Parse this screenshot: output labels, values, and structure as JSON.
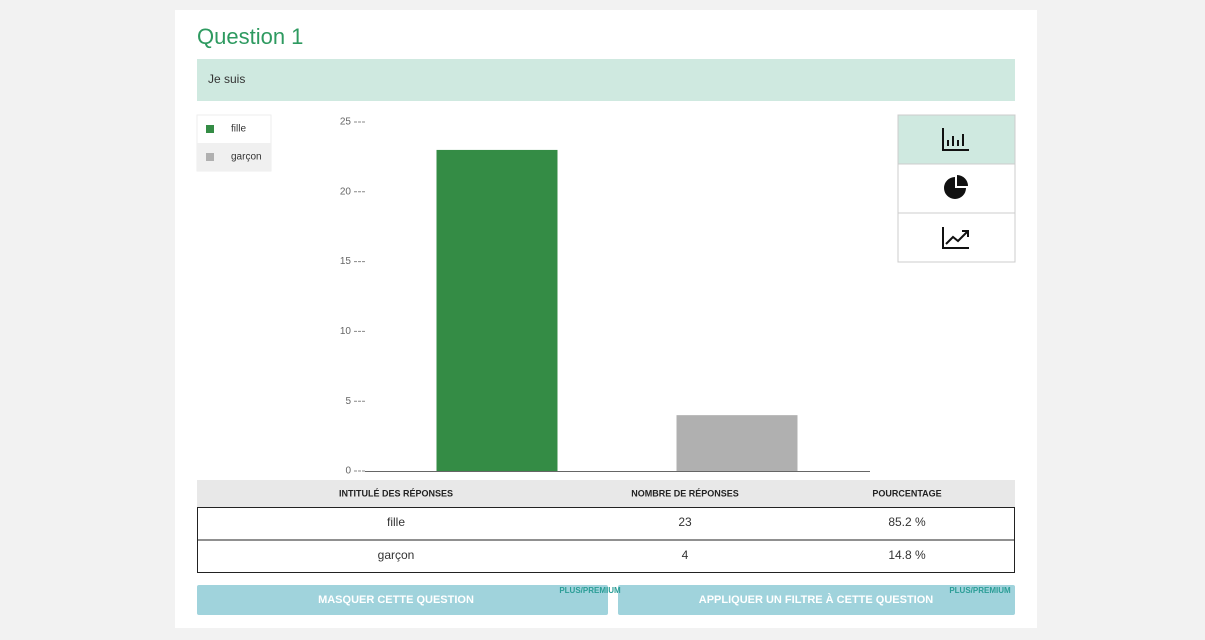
{
  "header": {
    "title": "Question 1",
    "question": "Je suis"
  },
  "chart_data": {
    "type": "bar",
    "categories": [
      "fille",
      "garçon"
    ],
    "values": [
      23,
      4
    ],
    "colors": [
      "#348c45",
      "#b0b0b0"
    ],
    "ylim": [
      0,
      25
    ],
    "yticks": [
      0,
      5,
      10,
      15,
      20,
      25
    ],
    "grid": false,
    "legend": "top-left"
  },
  "table": {
    "columns": [
      "INTITULÉ DES RÉPONSES",
      "NOMBRE DE RÉPONSES",
      "POURCENTAGE"
    ],
    "rows": [
      [
        "fille",
        "23",
        "85.2 %"
      ],
      [
        "garçon",
        "4",
        "14.8 %"
      ]
    ]
  },
  "buttons": [
    {
      "label": "MASQUER CETTE QUESTION",
      "badge": "PLUS/PREMIUM"
    },
    {
      "label": "APPLIQUER UN FILTRE À CETTE QUESTION",
      "badge": "PLUS/PREMIUM"
    }
  ]
}
